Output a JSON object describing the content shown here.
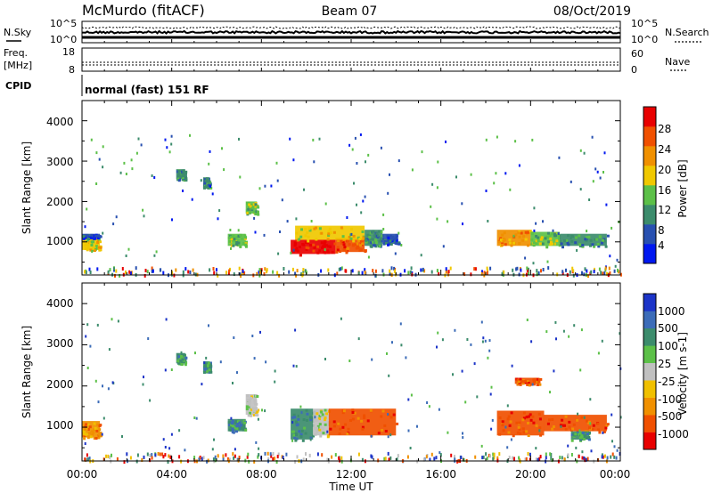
{
  "header": {
    "site": "McMurdo (fitACF)",
    "beam": "Beam 07",
    "date": "08/Oct/2019"
  },
  "noise_panel": {
    "left_label": "N.Sky",
    "right_label": "N.Search",
    "left_ticks": [
      "10^5",
      "10^0"
    ],
    "right_ticks": [
      "10^5",
      "10^0"
    ]
  },
  "freq_panel": {
    "left_label_1": "Freq.",
    "left_label_2": "[MHz]",
    "right_label": "Nave",
    "left_ticks": [
      "18",
      "8"
    ],
    "right_ticks": [
      "60",
      "0"
    ]
  },
  "cpid_panel": {
    "label": "CPID",
    "text": "normal (fast) 151 RF"
  },
  "x_axis": {
    "label": "Time UT",
    "ticks": [
      "00:00",
      "04:00",
      "08:00",
      "12:00",
      "16:00",
      "20:00",
      "00:00"
    ]
  },
  "power_panel": {
    "ylabel": "Slant Range [km]",
    "yticks": [
      "1000",
      "2000",
      "3000",
      "4000"
    ],
    "colorbar_label": "Power [dB]",
    "colorbar_ticks": [
      "4",
      "8",
      "12",
      "16",
      "20",
      "24",
      "28"
    ],
    "colors": [
      "#0018f0",
      "#2850b0",
      "#3c8c6c",
      "#5cc048",
      "#f0c800",
      "#f09000",
      "#f05000",
      "#e80000"
    ]
  },
  "velocity_panel": {
    "ylabel": "Slant Range [km]",
    "yticks": [
      "1000",
      "2000",
      "3000",
      "4000"
    ],
    "colorbar_label": "Velocity [m s-1]",
    "colorbar_ticks": [
      "1000",
      "500",
      "100",
      "25",
      "-25",
      "-100",
      "-500",
      "-1000"
    ],
    "colors": [
      "#1c34c8",
      "#3c6cb8",
      "#3c8c6c",
      "#5cc048",
      "#c0c0c0",
      "#f0c000",
      "#f09000",
      "#f05000",
      "#e80000"
    ]
  },
  "chart_data": {
    "type": "heatmap",
    "x_hours_range": [
      0,
      24
    ],
    "y_range_km": [
      180,
      4500
    ],
    "power_patches": [
      {
        "t": [
          0.0,
          0.8
        ],
        "r": [
          800,
          1100
        ],
        "level": 4
      },
      {
        "t": [
          0.0,
          0.8
        ],
        "r": [
          1100,
          1200
        ],
        "level": 1
      },
      {
        "t": [
          4.2,
          4.6
        ],
        "r": [
          2550,
          2800
        ],
        "level": 2
      },
      {
        "t": [
          5.4,
          5.7
        ],
        "r": [
          2350,
          2600
        ],
        "level": 2
      },
      {
        "t": [
          6.5,
          7.3
        ],
        "r": [
          900,
          1200
        ],
        "level": 3
      },
      {
        "t": [
          7.3,
          7.8
        ],
        "r": [
          1700,
          2000
        ],
        "level": 3
      },
      {
        "t": [
          9.3,
          11.3
        ],
        "r": [
          700,
          1050
        ],
        "level": 7
      },
      {
        "t": [
          11.3,
          12.6
        ],
        "r": [
          750,
          1100
        ],
        "level": 6
      },
      {
        "t": [
          9.5,
          12.6
        ],
        "r": [
          1050,
          1400
        ],
        "level": 4
      },
      {
        "t": [
          12.6,
          13.4
        ],
        "r": [
          900,
          1300
        ],
        "level": 2
      },
      {
        "t": [
          13.4,
          14.1
        ],
        "r": [
          950,
          1200
        ],
        "level": 1
      },
      {
        "t": [
          18.5,
          20.0
        ],
        "r": [
          900,
          1300
        ],
        "level": 5
      },
      {
        "t": [
          20.0,
          21.3
        ],
        "r": [
          900,
          1250
        ],
        "level": 3
      },
      {
        "t": [
          21.3,
          23.4
        ],
        "r": [
          900,
          1200
        ],
        "level": 2
      }
    ],
    "velocity_patches": [
      {
        "t": [
          0.0,
          0.8
        ],
        "r": [
          750,
          1150
        ],
        "level": 6
      },
      {
        "t": [
          4.2,
          4.6
        ],
        "r": [
          2550,
          2800
        ],
        "level": 2
      },
      {
        "t": [
          5.4,
          5.7
        ],
        "r": [
          2350,
          2600
        ],
        "level": 2
      },
      {
        "t": [
          6.5,
          7.3
        ],
        "r": [
          900,
          1200
        ],
        "level": 2
      },
      {
        "t": [
          7.3,
          7.8
        ],
        "r": [
          1300,
          1800
        ],
        "level": 4
      },
      {
        "t": [
          9.3,
          10.3
        ],
        "r": [
          700,
          1450
        ],
        "level": 2
      },
      {
        "t": [
          10.3,
          11.0
        ],
        "r": [
          800,
          1450
        ],
        "level": 4
      },
      {
        "t": [
          11.0,
          14.0
        ],
        "r": [
          800,
          1450
        ],
        "level": 7
      },
      {
        "t": [
          18.5,
          20.6
        ],
        "r": [
          800,
          1400
        ],
        "level": 7
      },
      {
        "t": [
          20.6,
          23.4
        ],
        "r": [
          900,
          1300
        ],
        "level": 7
      },
      {
        "t": [
          19.3,
          20.4
        ],
        "r": [
          2050,
          2200
        ],
        "level": 7
      },
      {
        "t": [
          21.8,
          22.6
        ],
        "r": [
          700,
          900
        ],
        "level": 2
      }
    ]
  }
}
